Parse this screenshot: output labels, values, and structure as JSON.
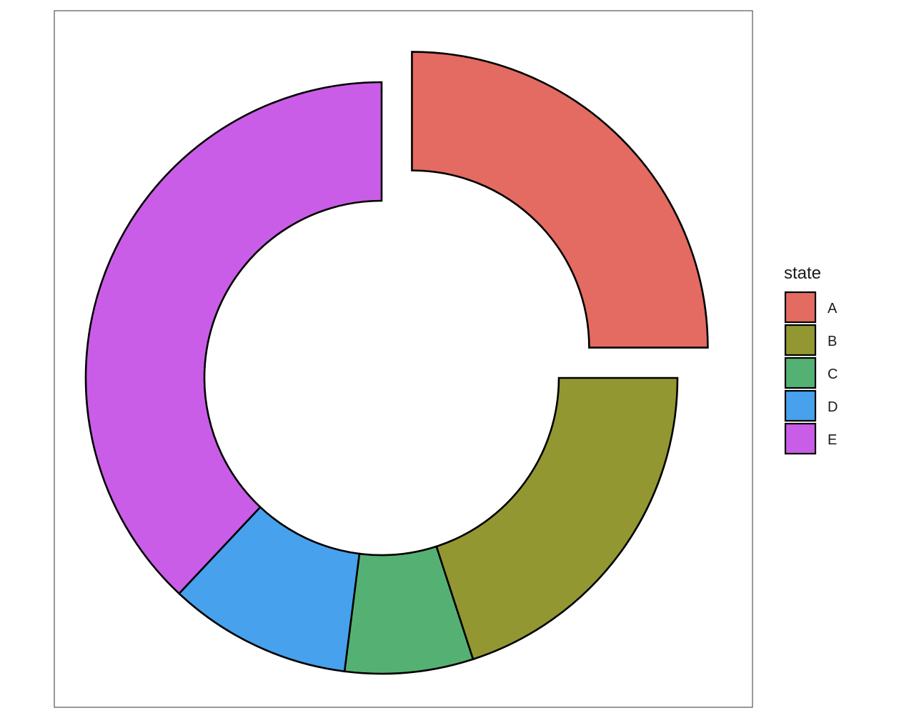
{
  "chart_data": {
    "type": "pie",
    "subtype": "donut",
    "exploded": [
      "A"
    ],
    "categories": [
      "A",
      "B",
      "C",
      "D",
      "E"
    ],
    "values": [
      25,
      20,
      7,
      10,
      38
    ],
    "colors": [
      "#E36B62",
      "#929731",
      "#55B173",
      "#47A1EC",
      "#CA5DE7"
    ],
    "legend": {
      "title": "state",
      "position": "right",
      "entries": [
        "A",
        "B",
        "C",
        "D",
        "E"
      ]
    },
    "title": "",
    "xlabel": "",
    "ylabel": "",
    "grid": false
  }
}
